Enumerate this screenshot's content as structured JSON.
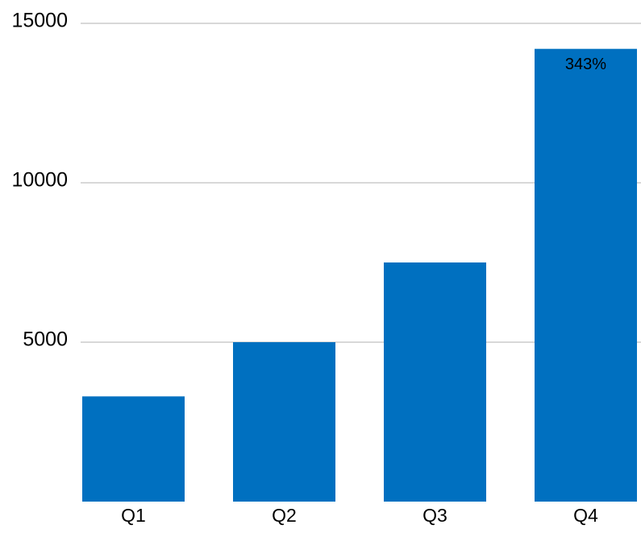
{
  "chart_data": {
    "type": "bar",
    "categories": [
      "Q1",
      "Q2",
      "Q3",
      "Q4"
    ],
    "values": [
      3300,
      5000,
      7500,
      14200
    ],
    "color": "#0070c0",
    "annotation": "343%",
    "ylim": [
      0,
      15000
    ],
    "yticks": [
      5000,
      10000,
      15000
    ],
    "grid": true
  }
}
